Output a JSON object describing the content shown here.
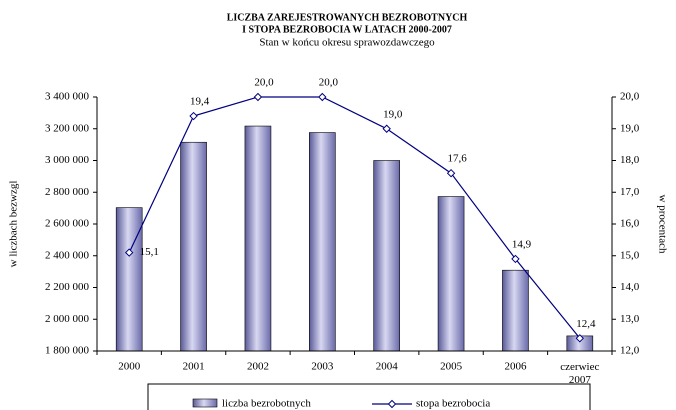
{
  "chart_data": {
    "type": "bar_line",
    "title": "LICZBA  ZAREJESTROWANYCH  BEZROBOTNYCH",
    "title_line2": "I STOPA  BEZROBOCIA W  LATACH  2000-2007",
    "subtitle": "Stan w końcu okresu sprawozdawczego",
    "y_label": "w liczbach bezwzgl",
    "y2_label": "w procentach",
    "categories": [
      "2000",
      "2001",
      "2002",
      "2003",
      "2004",
      "2005",
      "2006",
      "czerwiec 2007"
    ],
    "series": [
      {
        "name": "liczba bezrobotnych",
        "color": "#9999cc",
        "values": [
          2703000,
          3115000,
          3217000,
          3176000,
          3000000,
          2773000,
          2309000,
          1895000
        ]
      },
      {
        "name": "stopa bezrobocia",
        "color": "#000080",
        "axis": "y2",
        "values": [
          15.1,
          19.4,
          20.0,
          20.0,
          19.0,
          17.6,
          14.9,
          12.4
        ],
        "value_labels": [
          "15,1",
          "19,4",
          "20,0",
          "20,0",
          "19,0",
          "17,6",
          "14,9",
          "12,4"
        ]
      }
    ],
    "ylim": [
      1800000,
      3400000
    ],
    "yticks": [
      {
        "value": 1800000,
        "label": "1 800 000"
      },
      {
        "value": 2000000,
        "label": "2 000 000"
      },
      {
        "value": 2200000,
        "label": "2 200 000"
      },
      {
        "value": 2400000,
        "label": "2 400 000"
      },
      {
        "value": 2600000,
        "label": "2 600 000"
      },
      {
        "value": 2800000,
        "label": "2 800 000"
      },
      {
        "value": 3000000,
        "label": "3 000 000"
      },
      {
        "value": 3200000,
        "label": "3 200 000"
      },
      {
        "value": 3400000,
        "label": "3 400 000"
      }
    ],
    "y2lim": [
      12.0,
      20.0
    ],
    "y2ticks": [
      {
        "value": 12,
        "label": "12,0"
      },
      {
        "value": 13,
        "label": "13,0"
      },
      {
        "value": 14,
        "label": "14,0"
      },
      {
        "value": 15,
        "label": "15,0"
      },
      {
        "value": 16,
        "label": "16,0"
      },
      {
        "value": 17,
        "label": "17,0"
      },
      {
        "value": 18,
        "label": "18,0"
      },
      {
        "value": 19,
        "label": "19,0"
      },
      {
        "value": 20,
        "label": "20,0"
      }
    ]
  }
}
